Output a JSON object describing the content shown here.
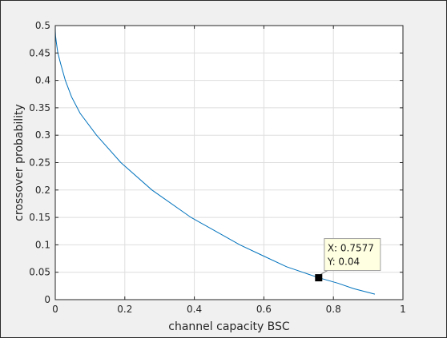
{
  "chart_data": {
    "type": "line",
    "xlabel": "channel capacity BSC",
    "ylabel": "crossover probability",
    "xlim": [
      0,
      1
    ],
    "ylim": [
      0,
      0.5
    ],
    "xticks": [
      0,
      0.2,
      0.4,
      0.6,
      0.8,
      1
    ],
    "yticks": [
      0,
      0.05,
      0.1,
      0.15,
      0.2,
      0.25,
      0.3,
      0.35,
      0.4,
      0.45,
      0.5
    ],
    "xtick_labels": [
      "0",
      "0.2",
      "0.4",
      "0.6",
      "0.8",
      "1"
    ],
    "ytick_labels": [
      "0",
      "0.05",
      "0.1",
      "0.15",
      "0.2",
      "0.25",
      "0.3",
      "0.35",
      "0.4",
      "0.45",
      "0.5"
    ],
    "grid": true,
    "line_color": "#0072bd",
    "series": [
      {
        "x": [
          0,
          0.0002,
          0.001,
          0.0029,
          0.0074,
          0.0156,
          0.0289,
          0.0468,
          0.0714,
          0.1187,
          0.1887,
          0.2781,
          0.3904,
          0.531,
          0.5978,
          0.6651,
          0.7577,
          0.8129,
          0.8584,
          0.9192
        ],
        "y": [
          0.5,
          0.49,
          0.48,
          0.47,
          0.45,
          0.43,
          0.4,
          0.37,
          0.34,
          0.3,
          0.25,
          0.2,
          0.15,
          0.1,
          0.08,
          0.06,
          0.04,
          0.03,
          0.02,
          0.01
        ]
      }
    ],
    "datatip": {
      "x": 0.7577,
      "y": 0.04,
      "x_text": "X: 0.7577",
      "y_text": "Y: 0.04"
    }
  }
}
